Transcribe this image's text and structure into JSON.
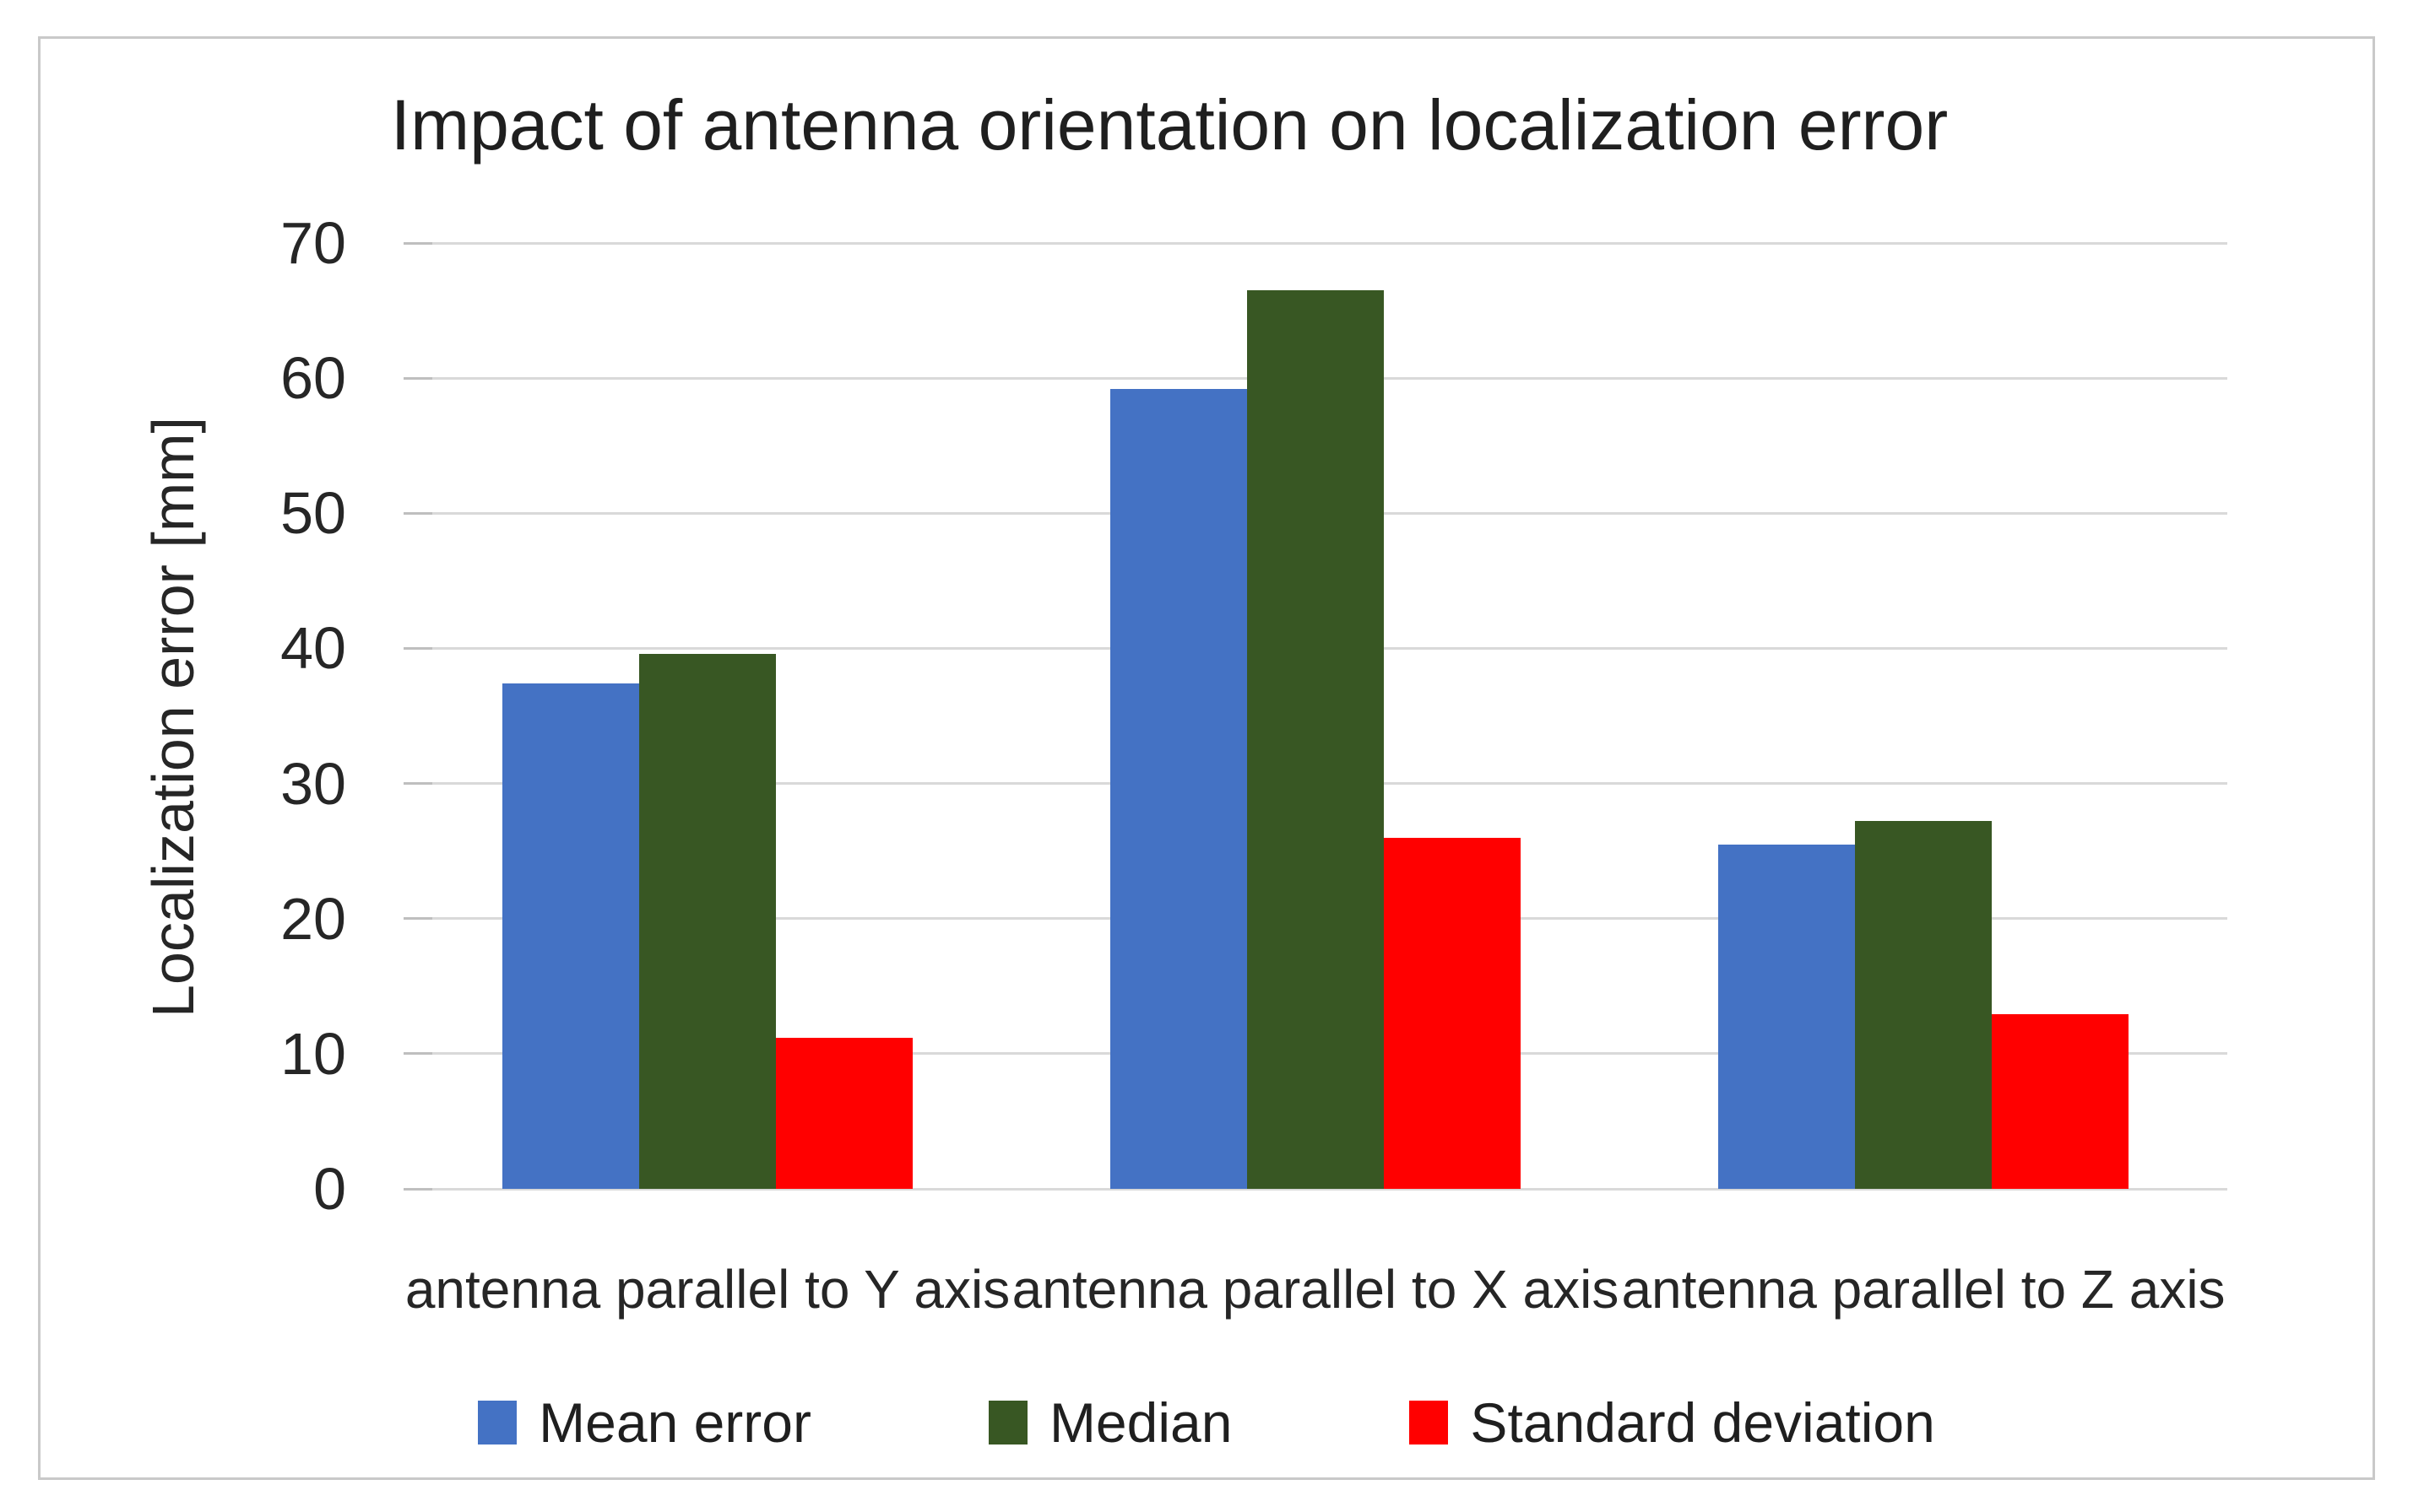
{
  "chart_data": {
    "type": "bar",
    "title": "Impact of antenna orientation on localization error",
    "ylabel": "Localization error [mm]",
    "xlabel": "",
    "ylim": [
      0,
      70
    ],
    "yticks": [
      0,
      10,
      20,
      30,
      40,
      50,
      60,
      70
    ],
    "grid": true,
    "legend_position": "bottom",
    "categories": [
      "antenna parallel to Y axis",
      "antenna parallel to X axis",
      "antenna parallel to Z axis"
    ],
    "series": [
      {
        "name": "Mean error",
        "color": "#4472C4",
        "values": [
          37.4,
          59.2,
          25.5
        ]
      },
      {
        "name": "Median",
        "color": "#385723",
        "values": [
          39.6,
          66.5,
          27.2
        ]
      },
      {
        "name": "Standard deviation",
        "color": "#FF0000",
        "values": [
          11.2,
          26.0,
          12.9
        ]
      }
    ]
  },
  "colors": {
    "gridline": "#D9D9D9",
    "tick_mark": "#BFBFBF",
    "text": "#262626",
    "frame_border": "#C9C9C9",
    "background": "#FFFFFF"
  }
}
